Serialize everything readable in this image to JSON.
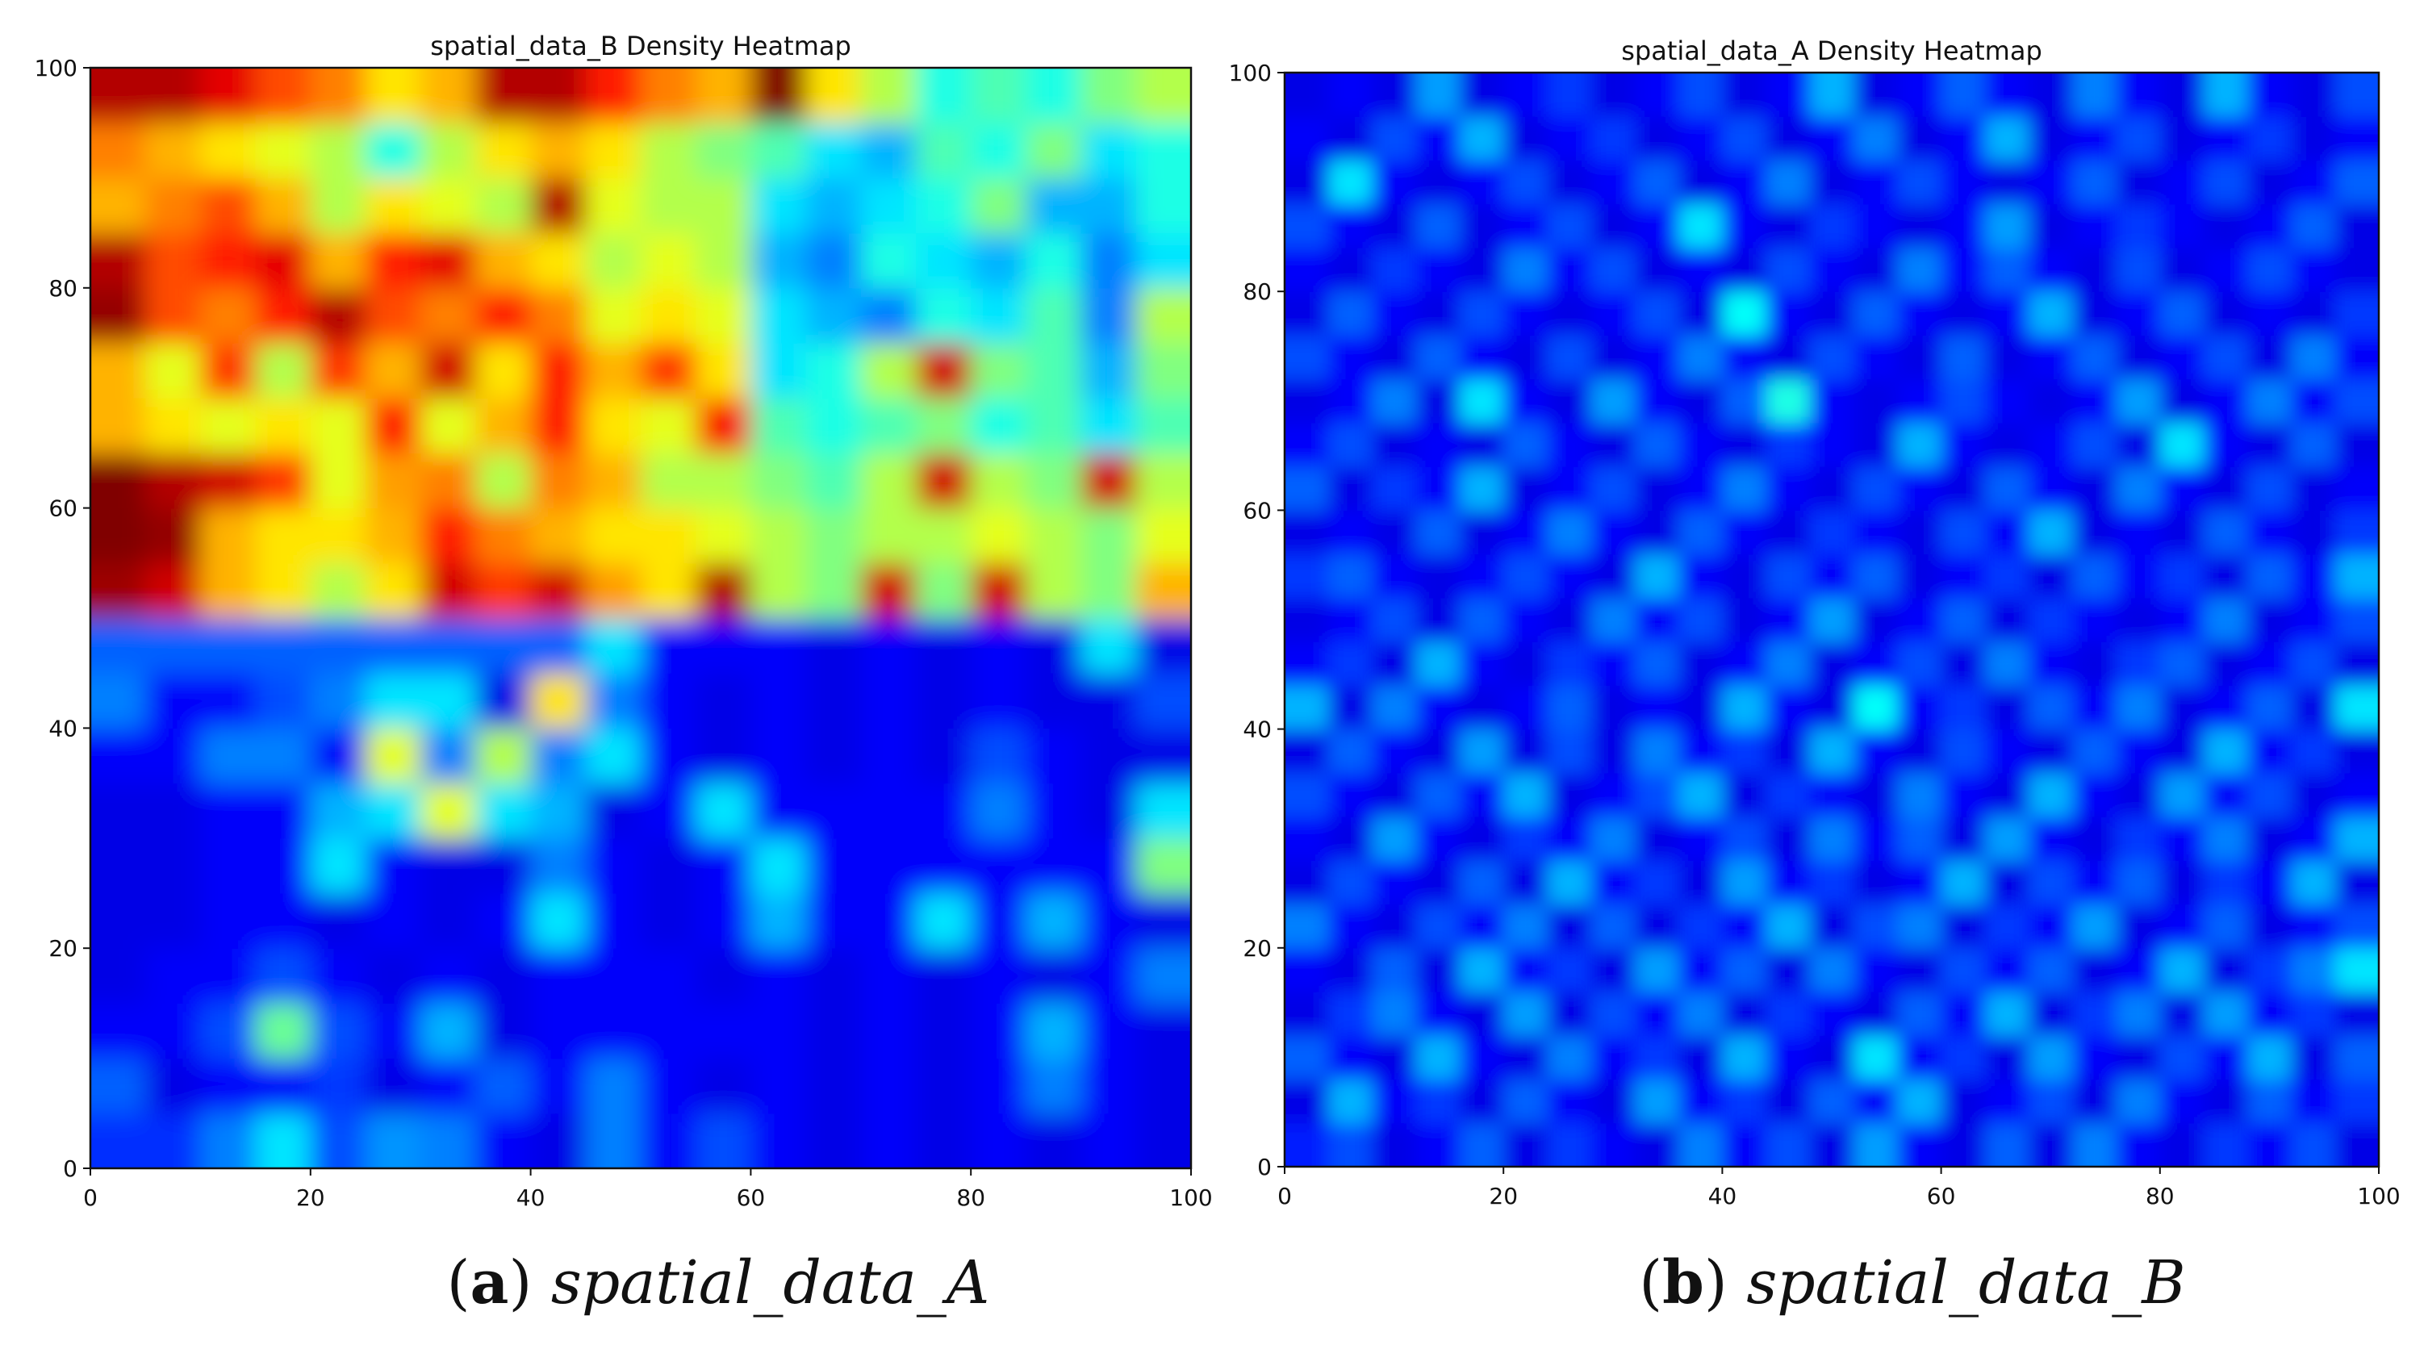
{
  "chart_data": [
    {
      "type": "heatmap",
      "title": "spatial_data_B Density Heatmap",
      "xlabel": "",
      "ylabel": "",
      "xlim": [
        0,
        100
      ],
      "ylim": [
        0,
        100
      ],
      "xticks": [
        "0",
        "20",
        "40",
        "60",
        "80",
        "100"
      ],
      "yticks": [
        "0",
        "20",
        "40",
        "60",
        "80",
        "100"
      ],
      "colormap": "jet",
      "colors": {
        "low": "#0000ff",
        "mid": "#00ffff",
        "mid_high": "#ffff00",
        "high": "#ff0000"
      },
      "grid_cell_size": 5,
      "levels_scale": "0 = lowest density, 1 = highest density",
      "levels": [
        [
          0.17,
          0.17,
          0.25,
          0.35,
          0.2,
          0.27,
          0.25,
          0.12,
          0.1,
          0.25,
          0.12,
          0.2,
          0.12,
          0.1,
          0.12,
          0.1,
          0.12,
          0.1,
          0.12,
          0.1
        ],
        [
          0.22,
          0.1,
          0.12,
          0.12,
          0.18,
          0.1,
          0.12,
          0.22,
          0.12,
          0.25,
          0.12,
          0.1,
          0.12,
          0.1,
          0.12,
          0.1,
          0.12,
          0.25,
          0.12,
          0.1
        ],
        [
          0.12,
          0.12,
          0.2,
          0.48,
          0.2,
          0.12,
          0.3,
          0.1,
          0.12,
          0.12,
          0.12,
          0.12,
          0.12,
          0.1,
          0.12,
          0.1,
          0.12,
          0.3,
          0.12,
          0.1
        ],
        [
          0.1,
          0.12,
          0.12,
          0.2,
          0.12,
          0.1,
          0.12,
          0.1,
          0.12,
          0.12,
          0.12,
          0.1,
          0.12,
          0.1,
          0.12,
          0.1,
          0.12,
          0.1,
          0.12,
          0.25
        ],
        [
          0.1,
          0.1,
          0.12,
          0.12,
          0.1,
          0.12,
          0.1,
          0.12,
          0.35,
          0.12,
          0.1,
          0.12,
          0.3,
          0.12,
          0.12,
          0.35,
          0.12,
          0.3,
          0.12,
          0.1
        ],
        [
          0.1,
          0.1,
          0.12,
          0.12,
          0.35,
          0.12,
          0.1,
          0.1,
          0.25,
          0.12,
          0.1,
          0.12,
          0.35,
          0.12,
          0.12,
          0.12,
          0.12,
          0.12,
          0.12,
          0.5
        ],
        [
          0.1,
          0.1,
          0.12,
          0.12,
          0.3,
          0.35,
          0.6,
          0.35,
          0.3,
          0.1,
          0.12,
          0.35,
          0.12,
          0.12,
          0.12,
          0.12,
          0.25,
          0.12,
          0.1,
          0.35
        ],
        [
          0.12,
          0.12,
          0.25,
          0.25,
          0.12,
          0.6,
          0.25,
          0.55,
          0.25,
          0.35,
          0.12,
          0.1,
          0.12,
          0.1,
          0.12,
          0.1,
          0.2,
          0.12,
          0.1,
          0.1
        ],
        [
          0.25,
          0.12,
          0.12,
          0.2,
          0.25,
          0.35,
          0.35,
          0.1,
          0.65,
          0.25,
          0.12,
          0.1,
          0.12,
          0.1,
          0.12,
          0.1,
          0.12,
          0.1,
          0.1,
          0.2
        ],
        [
          0.22,
          0.22,
          0.22,
          0.22,
          0.22,
          0.22,
          0.22,
          0.22,
          0.22,
          0.35,
          0.12,
          0.12,
          0.12,
          0.1,
          0.12,
          0.1,
          0.12,
          0.1,
          0.35,
          0.1
        ],
        [
          0.97,
          0.92,
          0.7,
          0.65,
          0.55,
          0.65,
          0.92,
          0.82,
          0.92,
          0.72,
          0.65,
          0.95,
          0.55,
          0.5,
          0.92,
          0.5,
          0.92,
          0.55,
          0.5,
          0.7
        ],
        [
          1.0,
          0.98,
          0.7,
          0.65,
          0.65,
          0.7,
          0.85,
          0.75,
          0.7,
          0.65,
          0.65,
          0.6,
          0.55,
          0.5,
          0.55,
          0.55,
          0.6,
          0.55,
          0.5,
          0.6
        ],
        [
          1.0,
          0.95,
          0.92,
          0.82,
          0.6,
          0.72,
          0.75,
          0.55,
          0.75,
          0.7,
          0.55,
          0.55,
          0.5,
          0.45,
          0.55,
          0.92,
          0.55,
          0.5,
          0.92,
          0.55
        ],
        [
          0.7,
          0.65,
          0.6,
          0.65,
          0.6,
          0.85,
          0.6,
          0.7,
          0.85,
          0.65,
          0.6,
          0.88,
          0.45,
          0.4,
          0.45,
          0.5,
          0.4,
          0.45,
          0.35,
          0.45
        ],
        [
          0.7,
          0.6,
          0.82,
          0.55,
          0.82,
          0.7,
          0.92,
          0.65,
          0.85,
          0.7,
          0.82,
          0.65,
          0.35,
          0.4,
          0.55,
          0.92,
          0.5,
          0.45,
          0.3,
          0.5
        ],
        [
          0.98,
          0.8,
          0.75,
          0.85,
          0.95,
          0.8,
          0.75,
          0.85,
          0.75,
          0.6,
          0.65,
          0.6,
          0.35,
          0.3,
          0.25,
          0.4,
          0.35,
          0.45,
          0.25,
          0.55
        ],
        [
          0.95,
          0.8,
          0.85,
          0.9,
          0.7,
          0.85,
          0.9,
          0.7,
          0.65,
          0.55,
          0.6,
          0.55,
          0.3,
          0.25,
          0.4,
          0.35,
          0.3,
          0.4,
          0.25,
          0.35
        ],
        [
          0.7,
          0.75,
          0.8,
          0.7,
          0.55,
          0.65,
          0.6,
          0.55,
          0.95,
          0.6,
          0.55,
          0.55,
          0.35,
          0.3,
          0.35,
          0.4,
          0.5,
          0.3,
          0.3,
          0.4
        ],
        [
          0.75,
          0.7,
          0.65,
          0.6,
          0.55,
          0.4,
          0.55,
          0.65,
          0.7,
          0.65,
          0.55,
          0.5,
          0.45,
          0.35,
          0.3,
          0.45,
          0.4,
          0.5,
          0.35,
          0.4
        ],
        [
          0.95,
          0.95,
          0.9,
          0.8,
          0.75,
          0.65,
          0.7,
          0.95,
          0.95,
          0.85,
          0.75,
          0.7,
          1.0,
          0.65,
          0.55,
          0.4,
          0.45,
          0.4,
          0.5,
          0.55
        ]
      ]
    },
    {
      "type": "heatmap",
      "title": "spatial_data_A Density Heatmap",
      "xlabel": "",
      "ylabel": "",
      "xlim": [
        0,
        100
      ],
      "ylim": [
        0,
        100
      ],
      "xticks": [
        "0",
        "20",
        "40",
        "60",
        "80",
        "100"
      ],
      "yticks": [
        "0",
        "20",
        "40",
        "60",
        "80",
        "100"
      ],
      "colormap": "jet",
      "colors": {
        "low": "#0000ff",
        "mid": "#00ffff",
        "mid_high": "#ffff00",
        "high": "#ff0000"
      },
      "grid_cell_size": 4,
      "levels_scale": "0 = lowest density, 1 = highest density",
      "levels": [
        [
          0.15,
          0.2,
          0.1,
          0.12,
          0.22,
          0.1,
          0.18,
          0.12,
          0.1,
          0.25,
          0.12,
          0.2,
          0.1,
          0.28,
          0.12,
          0.1,
          0.22,
          0.1,
          0.25,
          0.12,
          0.1,
          0.18,
          0.12,
          0.2,
          0.1
        ],
        [
          0.1,
          0.3,
          0.12,
          0.18,
          0.1,
          0.22,
          0.12,
          0.1,
          0.28,
          0.12,
          0.18,
          0.1,
          0.22,
          0.12,
          0.3,
          0.1,
          0.12,
          0.2,
          0.1,
          0.25,
          0.12,
          0.1,
          0.22,
          0.12,
          0.18
        ],
        [
          0.22,
          0.12,
          0.1,
          0.3,
          0.12,
          0.1,
          0.25,
          0.12,
          0.18,
          0.1,
          0.3,
          0.12,
          0.1,
          0.35,
          0.12,
          0.18,
          0.1,
          0.28,
          0.12,
          0.1,
          0.2,
          0.12,
          0.3,
          0.1,
          0.22
        ],
        [
          0.1,
          0.18,
          0.25,
          0.12,
          0.1,
          0.28,
          0.1,
          0.2,
          0.12,
          0.25,
          0.1,
          0.18,
          0.12,
          0.1,
          0.22,
          0.12,
          0.3,
          0.1,
          0.18,
          0.25,
          0.1,
          0.28,
          0.12,
          0.18,
          0.1
        ],
        [
          0.12,
          0.1,
          0.22,
          0.1,
          0.3,
          0.12,
          0.18,
          0.1,
          0.28,
          0.12,
          0.22,
          0.1,
          0.25,
          0.12,
          0.1,
          0.2,
          0.12,
          0.22,
          0.1,
          0.12,
          0.3,
          0.1,
          0.18,
          0.25,
          0.35
        ],
        [
          0.25,
          0.12,
          0.1,
          0.2,
          0.12,
          0.25,
          0.1,
          0.22,
          0.1,
          0.18,
          0.12,
          0.3,
          0.1,
          0.2,
          0.25,
          0.1,
          0.18,
          0.12,
          0.28,
          0.1,
          0.12,
          0.22,
          0.1,
          0.12,
          0.2
        ],
        [
          0.1,
          0.2,
          0.12,
          0.1,
          0.22,
          0.1,
          0.3,
          0.12,
          0.18,
          0.1,
          0.28,
          0.12,
          0.18,
          0.1,
          0.12,
          0.3,
          0.1,
          0.2,
          0.12,
          0.22,
          0.1,
          0.18,
          0.12,
          0.3,
          0.1
        ],
        [
          0.12,
          0.1,
          0.28,
          0.12,
          0.1,
          0.18,
          0.12,
          0.25,
          0.1,
          0.12,
          0.2,
          0.1,
          0.25,
          0.12,
          0.22,
          0.1,
          0.28,
          0.12,
          0.1,
          0.18,
          0.12,
          0.25,
          0.1,
          0.12,
          0.3
        ],
        [
          0.2,
          0.12,
          0.1,
          0.22,
          0.12,
          0.3,
          0.1,
          0.12,
          0.2,
          0.3,
          0.1,
          0.18,
          0.12,
          0.1,
          0.25,
          0.12,
          0.1,
          0.3,
          0.12,
          0.1,
          0.28,
          0.12,
          0.2,
          0.1,
          0.12
        ],
        [
          0.1,
          0.22,
          0.12,
          0.1,
          0.28,
          0.1,
          0.2,
          0.1,
          0.25,
          0.12,
          0.18,
          0.1,
          0.3,
          0.12,
          0.1,
          0.2,
          0.12,
          0.1,
          0.22,
          0.12,
          0.1,
          0.3,
          0.12,
          0.18,
          0.1
        ],
        [
          0.3,
          0.1,
          0.25,
          0.12,
          0.1,
          0.12,
          0.22,
          0.1,
          0.12,
          0.1,
          0.3,
          0.12,
          0.1,
          0.38,
          0.12,
          0.18,
          0.1,
          0.22,
          0.12,
          0.25,
          0.1,
          0.12,
          0.22,
          0.1,
          0.35
        ],
        [
          0.12,
          0.18,
          0.1,
          0.3,
          0.12,
          0.1,
          0.18,
          0.12,
          0.22,
          0.1,
          0.12,
          0.25,
          0.1,
          0.12,
          0.2,
          0.1,
          0.25,
          0.12,
          0.1,
          0.18,
          0.22,
          0.1,
          0.12,
          0.2,
          0.1
        ],
        [
          0.1,
          0.12,
          0.2,
          0.1,
          0.22,
          0.12,
          0.1,
          0.25,
          0.12,
          0.2,
          0.1,
          0.12,
          0.28,
          0.1,
          0.12,
          0.22,
          0.1,
          0.18,
          0.12,
          0.1,
          0.12,
          0.25,
          0.1,
          0.12,
          0.2
        ],
        [
          0.18,
          0.22,
          0.12,
          0.1,
          0.12,
          0.2,
          0.12,
          0.1,
          0.3,
          0.12,
          0.1,
          0.2,
          0.12,
          0.22,
          0.1,
          0.12,
          0.18,
          0.1,
          0.22,
          0.12,
          0.18,
          0.1,
          0.22,
          0.12,
          0.3
        ],
        [
          0.1,
          0.12,
          0.1,
          0.22,
          0.1,
          0.12,
          0.25,
          0.12,
          0.1,
          0.22,
          0.12,
          0.1,
          0.18,
          0.12,
          0.1,
          0.2,
          0.12,
          0.3,
          0.1,
          0.12,
          0.1,
          0.22,
          0.12,
          0.1,
          0.18
        ],
        [
          0.22,
          0.1,
          0.18,
          0.12,
          0.3,
          0.1,
          0.12,
          0.2,
          0.1,
          0.12,
          0.25,
          0.12,
          0.1,
          0.2,
          0.12,
          0.1,
          0.22,
          0.12,
          0.1,
          0.25,
          0.12,
          0.1,
          0.2,
          0.1,
          0.12
        ],
        [
          0.12,
          0.2,
          0.1,
          0.12,
          0.1,
          0.22,
          0.12,
          0.1,
          0.22,
          0.12,
          0.1,
          0.18,
          0.12,
          0.1,
          0.3,
          0.12,
          0.1,
          0.12,
          0.2,
          0.1,
          0.35,
          0.12,
          0.1,
          0.22,
          0.1
        ],
        [
          0.1,
          0.12,
          0.25,
          0.1,
          0.35,
          0.12,
          0.1,
          0.28,
          0.12,
          0.1,
          0.22,
          0.4,
          0.12,
          0.1,
          0.12,
          0.2,
          0.12,
          0.1,
          0.12,
          0.28,
          0.1,
          0.12,
          0.25,
          0.12,
          0.2
        ],
        [
          0.2,
          0.12,
          0.1,
          0.22,
          0.12,
          0.1,
          0.2,
          0.1,
          0.12,
          0.25,
          0.12,
          0.1,
          0.2,
          0.12,
          0.1,
          0.22,
          0.1,
          0.12,
          0.22,
          0.1,
          0.12,
          0.2,
          0.1,
          0.25,
          0.12
        ],
        [
          0.1,
          0.22,
          0.12,
          0.1,
          0.2,
          0.12,
          0.1,
          0.12,
          0.2,
          0.1,
          0.38,
          0.12,
          0.1,
          0.22,
          0.12,
          0.1,
          0.12,
          0.3,
          0.1,
          0.12,
          0.22,
          0.1,
          0.12,
          0.1,
          0.18
        ],
        [
          0.12,
          0.1,
          0.18,
          0.12,
          0.1,
          0.25,
          0.12,
          0.2,
          0.1,
          0.12,
          0.1,
          0.2,
          0.12,
          0.1,
          0.25,
          0.12,
          0.22,
          0.12,
          0.1,
          0.2,
          0.1,
          0.12,
          0.2,
          0.12,
          0.1
        ],
        [
          0.2,
          0.12,
          0.1,
          0.22,
          0.1,
          0.12,
          0.2,
          0.1,
          0.12,
          0.35,
          0.12,
          0.1,
          0.18,
          0.12,
          0.1,
          0.12,
          0.28,
          0.1,
          0.12,
          0.18,
          0.12,
          0.1,
          0.12,
          0.22,
          0.1
        ],
        [
          0.1,
          0.35,
          0.12,
          0.1,
          0.12,
          0.2,
          0.1,
          0.12,
          0.22,
          0.1,
          0.12,
          0.25,
          0.1,
          0.12,
          0.2,
          0.12,
          0.1,
          0.12,
          0.22,
          0.1,
          0.12,
          0.2,
          0.1,
          0.12,
          0.22
        ],
        [
          0.12,
          0.1,
          0.2,
          0.12,
          0.3,
          0.1,
          0.12,
          0.18,
          0.1,
          0.12,
          0.2,
          0.1,
          0.12,
          0.25,
          0.1,
          0.12,
          0.3,
          0.1,
          0.12,
          0.2,
          0.1,
          0.12,
          0.18,
          0.1,
          0.12
        ],
        [
          0.1,
          0.12,
          0.1,
          0.28,
          0.1,
          0.12,
          0.18,
          0.1,
          0.12,
          0.2,
          0.1,
          0.12,
          0.3,
          0.1,
          0.12,
          0.22,
          0.12,
          0.1,
          0.25,
          0.12,
          0.1,
          0.3,
          0.12,
          0.1,
          0.2
        ]
      ]
    }
  ],
  "captions": {
    "a": {
      "tag": "a",
      "name": "spatial_data_A"
    },
    "b": {
      "tag": "b",
      "name": "spatial_data_B"
    }
  }
}
